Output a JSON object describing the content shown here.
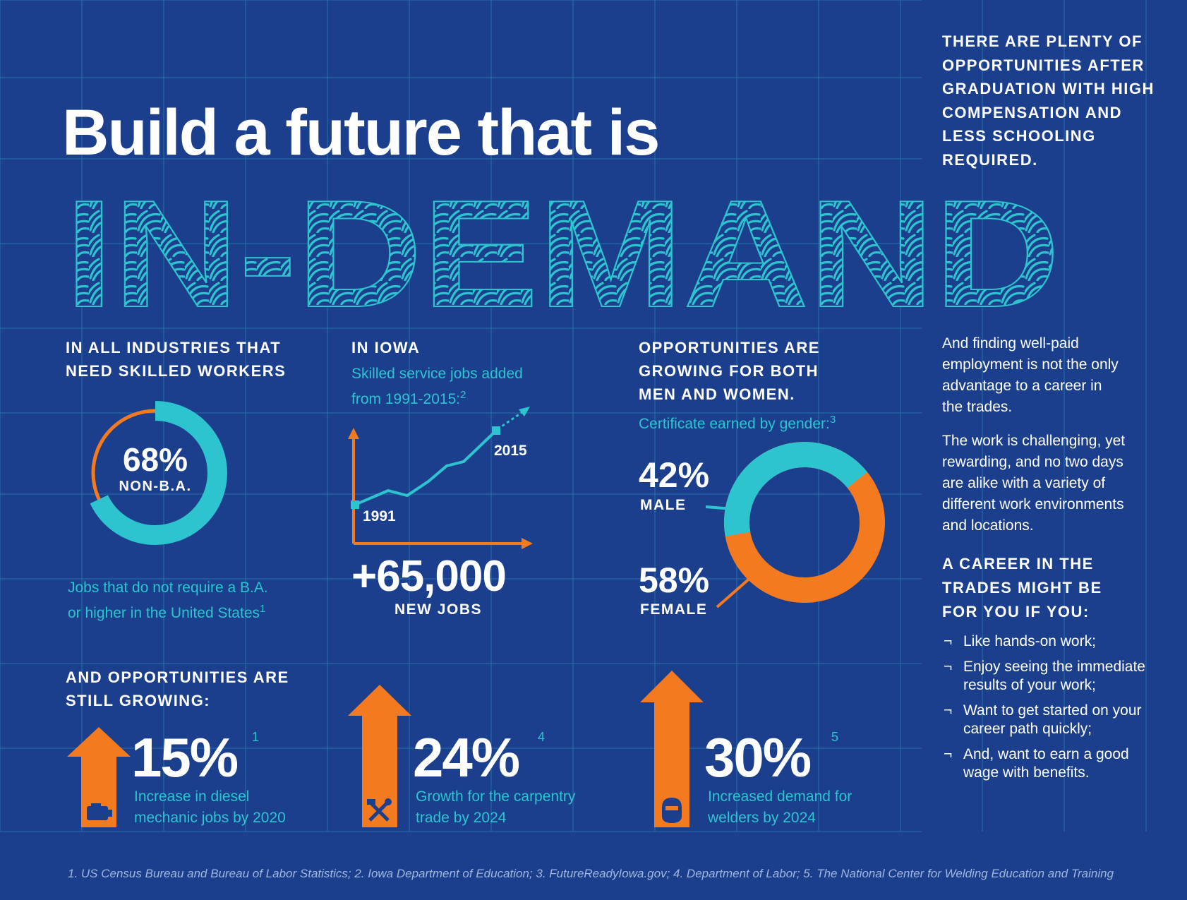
{
  "colors": {
    "background": "#1b3f8c",
    "teal": "#2ec4cf",
    "orange": "#f47a20",
    "white": "#ffffff"
  },
  "headline": {
    "line1": "Build a future that is",
    "line2": "IN-DEMAND"
  },
  "intro": "THERE ARE PLENTY OF OPPORTUNITIES AFTER GRADUATION WITH HIGH COMPENSATION AND LESS SCHOOLING REQUIRED.",
  "industries": {
    "heading_line1": "IN ALL INDUSTRIES THAT",
    "heading_line2": "NEED SKILLED WORKERS",
    "percent": "68%",
    "label": "NON-B.A.",
    "caption_line1": "Jobs that do not require a B.A.",
    "caption_line2": "or higher in the United States",
    "ref": "1",
    "share": 0.68
  },
  "iowa": {
    "heading": "IN IOWA",
    "caption_line1": "Skilled service jobs added",
    "caption_line2": "from 1991-2015:",
    "ref": "2",
    "start_year": "1991",
    "end_year": "2015",
    "value": "+65,000",
    "value_label": "NEW JOBS"
  },
  "gender": {
    "heading_line1": "OPPORTUNITIES ARE",
    "heading_line2": "GROWING FOR BOTH",
    "heading_line3": "MEN AND WOMEN.",
    "caption": "Certificate earned by gender:",
    "ref": "3",
    "male_pct": "42%",
    "male_label": "MALE",
    "female_pct": "58%",
    "female_label": "FEMALE",
    "male_share": 0.42,
    "female_share": 0.58
  },
  "growth": {
    "heading_line1": "AND OPPORTUNITIES ARE",
    "heading_line2": "STILL GROWING:",
    "items": [
      {
        "value": "15%",
        "ref": "1",
        "line1": "Increase in diesel",
        "line2": "mechanic jobs by 2020",
        "icon": "engine-icon"
      },
      {
        "value": "24%",
        "ref": "4",
        "line1": "Growth for the carpentry",
        "line2": "trade by 2024",
        "icon": "hammer-wrench-icon"
      },
      {
        "value": "30%",
        "ref": "5",
        "line1": "Increased demand for",
        "line2": "welders by 2024",
        "icon": "welder-mask-icon"
      }
    ]
  },
  "sidebar": {
    "para1": "And finding well-paid employment is not the only advantage to a career in the trades.",
    "para2": "The work is challenging, yet rewarding, and no two days are alike with a variety of different work environments and locations.",
    "heading": "A CAREER IN THE TRADES MIGHT BE FOR YOU IF YOU:",
    "list": [
      "Like hands-on work;",
      "Enjoy seeing the immediate results of your work;",
      "Want to get started on your career path quickly;",
      "And, want to earn a good wage with benefits."
    ]
  },
  "footnote": "1. US Census Bureau and Bureau of Labor Statistics; 2. Iowa Department of Education; 3. FutureReadyIowa.gov; 4. Department of Labor; 5. The National Center for Welding Education and Training"
}
